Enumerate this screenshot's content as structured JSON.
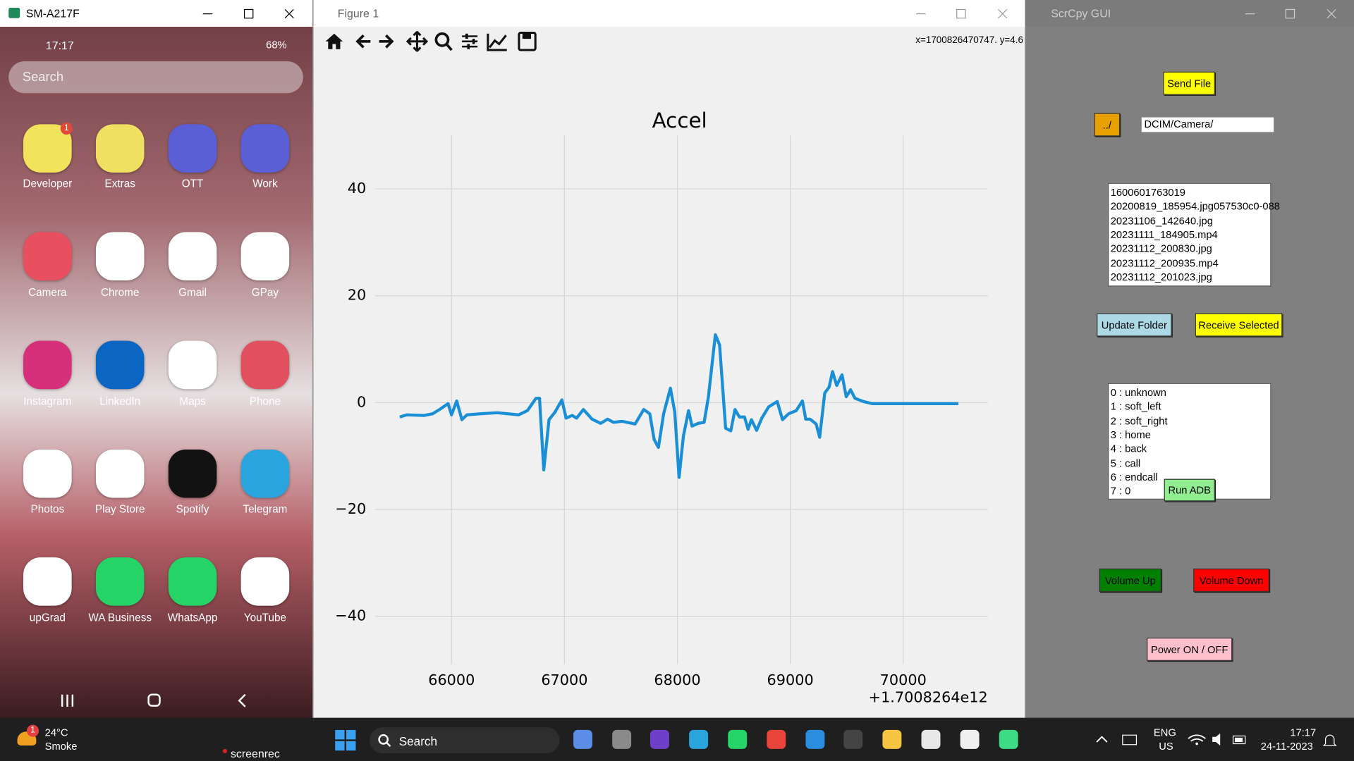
{
  "phone": {
    "window_title": "SM-A217F",
    "time": "17:17",
    "battery": "68%",
    "search": "Search",
    "badge": "1",
    "apps": [
      {
        "label": "Developer",
        "color": "#f2e35c"
      },
      {
        "label": "Extras",
        "color": "#f0e062"
      },
      {
        "label": "OTT",
        "color": "#5b5fd6"
      },
      {
        "label": "Work",
        "color": "#5b5fd6"
      },
      {
        "label": "Camera",
        "color": "#e8505f"
      },
      {
        "label": "Chrome",
        "color": "#ffffff"
      },
      {
        "label": "Gmail",
        "color": "#ffffff"
      },
      {
        "label": "GPay",
        "color": "#ffffff"
      },
      {
        "label": "Instagram",
        "color": "#d6307a"
      },
      {
        "label": "LinkedIn",
        "color": "#0a66c2"
      },
      {
        "label": "Maps",
        "color": "#ffffff"
      },
      {
        "label": "Phone",
        "color": "#e0505e"
      },
      {
        "label": "Photos",
        "color": "#ffffff"
      },
      {
        "label": "Play Store",
        "color": "#ffffff"
      },
      {
        "label": "Spotify",
        "color": "#121212"
      },
      {
        "label": "Telegram",
        "color": "#2aa4dc"
      },
      {
        "label": "upGrad",
        "color": "#ffffff"
      },
      {
        "label": "WA Business",
        "color": "#25d366"
      },
      {
        "label": "WhatsApp",
        "color": "#25d366"
      },
      {
        "label": "YouTube",
        "color": "#ffffff"
      }
    ]
  },
  "figure": {
    "window_title": "Figure 1",
    "coords": "x=1700826470747. y=4.6"
  },
  "chart_data": {
    "type": "line",
    "title": "Accel",
    "color": "#1a8fd6",
    "x": [
      65542,
      65603,
      65756,
      65832,
      65908,
      65969,
      66000,
      66046,
      66092,
      66137,
      66252,
      66405,
      66595,
      66672,
      66748,
      66779,
      66817,
      66863,
      66916,
      66977,
      67015,
      67069,
      67107,
      67168,
      67244,
      67321,
      67382,
      67435,
      67511,
      67626,
      67702,
      67756,
      67794,
      67832,
      67878,
      67939,
      67977,
      68015,
      68053,
      68099,
      68130,
      68183,
      68237,
      68275,
      68336,
      68374,
      68427,
      68473,
      68511,
      68550,
      68595,
      68626,
      68656,
      68702,
      68748,
      68809,
      68885,
      68931,
      68985,
      69053,
      69107,
      69137,
      69176,
      69229,
      69260,
      69305,
      69344,
      69374,
      69412,
      69458,
      69496,
      69534,
      69573,
      69649,
      69725,
      70031,
      70260,
      70489
    ],
    "values": [
      -2.7,
      -2.3,
      -2.4,
      -2.1,
      -1.1,
      -0.2,
      -2.3,
      0.3,
      -3.2,
      -2.3,
      -2.1,
      -1.9,
      -2.3,
      -1.5,
      0.8,
      0.8,
      -12.6,
      -3.2,
      -1.8,
      0.5,
      -2.9,
      -2.4,
      -2.9,
      -1.3,
      -3.1,
      -3.9,
      -3.1,
      -3.7,
      -3.5,
      -4.0,
      -1.3,
      -2.1,
      -6.9,
      -8.4,
      -2.1,
      2.7,
      -1.8,
      -14.0,
      -6.3,
      -1.5,
      -4.4,
      -3.9,
      -3.7,
      1.1,
      12.7,
      10.8,
      -4.8,
      -5.3,
      -1.3,
      -2.7,
      -2.7,
      -5.0,
      -3.2,
      -5.2,
      -2.9,
      -0.8,
      0.2,
      -3.2,
      -2.1,
      -1.5,
      0.3,
      -3.1,
      -3.1,
      -4.0,
      -6.5,
      1.8,
      2.9,
      5.8,
      3.2,
      5.2,
      1.1,
      2.4,
      0.8,
      0.2,
      -0.2,
      -0.2,
      -0.2,
      -0.2
    ],
    "xlim": [
      65320,
      70750
    ],
    "ylim": [
      -49,
      50
    ],
    "xticks": [
      66000,
      67000,
      68000,
      69000,
      70000
    ],
    "yticks": [
      40,
      20,
      0,
      {
        "value": -20,
        "label": "−20"
      },
      {
        "value": -40,
        "label": "−40"
      }
    ],
    "x_offset": "+1.7008264e12",
    "grid": true
  },
  "scrcpy": {
    "window_title": "ScrCpy GUI",
    "send_file": "Send File",
    "up": "../",
    "path": "DCIM/Camera/",
    "files": [
      "1600601763019",
      "20200819_185954.jpg057530c0-088",
      "20231106_142640.jpg",
      "20231111_184905.mp4",
      "20231112_200830.jpg",
      "20231112_200935.mp4",
      "20231112_201023.jpg"
    ],
    "update_folder": "Update Folder",
    "receive_selected": "Receive Selected",
    "keys": [
      "0 : unknown",
      "1 : soft_left",
      "2 : soft_right",
      "3 : home",
      "4 : back",
      "5 : call",
      "6 : endcall",
      "7 : 0"
    ],
    "run_adb": "Run ADB",
    "volume_up": "Volume Up",
    "volume_down": "Volume Down",
    "power": "Power ON / OFF"
  },
  "taskbar": {
    "temp": "24°C",
    "weather": "Smoke",
    "badge": "1",
    "recorder": "screenrec",
    "search": "Search",
    "lang": "ENG",
    "region": "US",
    "time": "17:17",
    "date": "24-11-2023"
  }
}
